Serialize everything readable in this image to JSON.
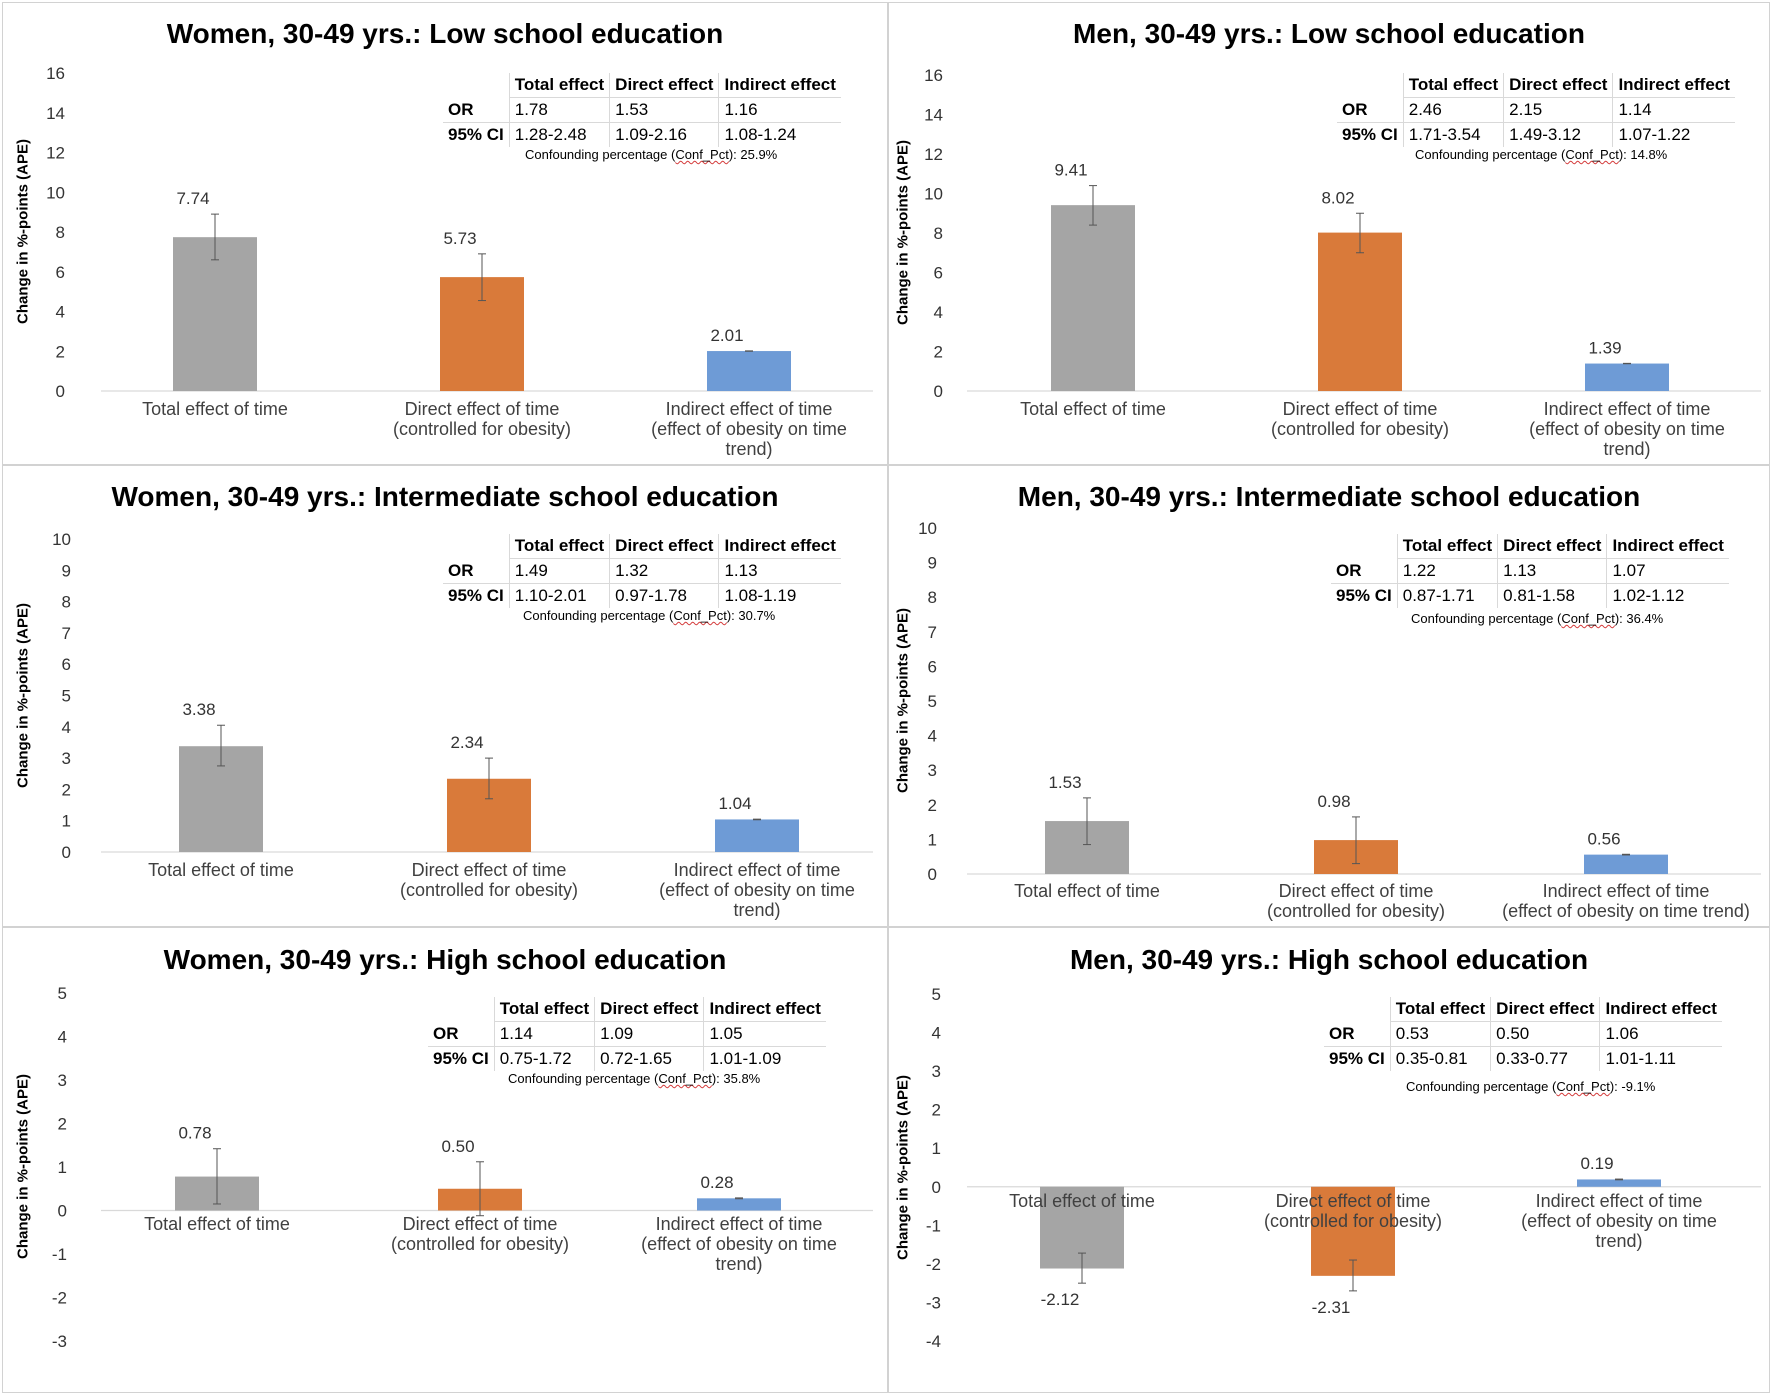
{
  "colors": {
    "total": "#a5a5a5",
    "direct": "#d97a3a",
    "indirect": "#6e9bd6",
    "axis_text": "#333333",
    "axis_line": "#d9d9d9"
  },
  "chart_data": [
    {
      "type": "bar",
      "title": "Women, 30-49 yrs.: Low school education",
      "ylabel": "Change in  %-points (APE)",
      "ylim": [
        0,
        16
      ],
      "ystep": 2,
      "categories": [
        [
          "Total effect of time"
        ],
        [
          "Direct effect of time",
          "(controlled for obesity)"
        ],
        [
          "Indirect effect of time",
          "(effect of obesity on time",
          "trend)"
        ]
      ],
      "values": [
        7.74,
        5.73,
        2.01
      ],
      "labels": [
        "7.74",
        "5.73",
        "2.01"
      ],
      "errors": [
        [
          6.6,
          8.9
        ],
        [
          4.55,
          6.9
        ],
        [
          2.0,
          2.02
        ]
      ],
      "table": {
        "headers": [
          "Total effect",
          "Direct effect",
          "Indirect effect"
        ],
        "rows": [
          {
            "label": "OR",
            "values": [
              "1.78",
              "1.53",
              "1.16"
            ]
          },
          {
            "label": "95% CI",
            "values": [
              "1.28-2.48",
              "1.09-2.16",
              "1.08-1.24"
            ]
          }
        ]
      },
      "confounding": {
        "prefix": "Confounding percentage (",
        "term": "Conf_Pct",
        "suffix": "): 25.9%"
      }
    },
    {
      "type": "bar",
      "title": "Men, 30-49 yrs.: Low school education",
      "ylabel": "Change in  %-points (APE)",
      "ylim": [
        0,
        16
      ],
      "ystep": 2,
      "categories": [
        [
          "Total effect of time"
        ],
        [
          "Direct effect of time",
          "(controlled for obesity)"
        ],
        [
          "Indirect effect of time",
          "(effect of obesity on time",
          "trend)"
        ]
      ],
      "values": [
        9.41,
        8.02,
        1.39
      ],
      "labels": [
        "9.41",
        "8.02",
        "1.39"
      ],
      "errors": [
        [
          8.4,
          10.4
        ],
        [
          7.0,
          9.0
        ],
        [
          1.38,
          1.4
        ]
      ],
      "table": {
        "headers": [
          "Total effect",
          "Direct effect",
          "Indirect effect"
        ],
        "rows": [
          {
            "label": "OR",
            "values": [
              "2.46",
              "2.15",
              "1.14"
            ]
          },
          {
            "label": "95% CI",
            "values": [
              "1.71-3.54",
              "1.49-3.12",
              "1.07-1.22"
            ]
          }
        ]
      },
      "confounding": {
        "prefix": "Confounding percentage (",
        "term": "Conf_Pct",
        "suffix": "): 14.8%"
      }
    },
    {
      "type": "bar",
      "title": "Women, 30-49 yrs.: Intermediate school education",
      "ylabel": "Change in  %-points (APE)",
      "ylim": [
        0,
        10
      ],
      "ystep": 1,
      "categories": [
        [
          "Total effect of time"
        ],
        [
          "Direct effect of time",
          "(controlled for obesity)"
        ],
        [
          "Indirect effect of time",
          "(effect of obesity on time",
          "trend)"
        ]
      ],
      "values": [
        3.38,
        2.34,
        1.04
      ],
      "labels": [
        "3.38",
        "2.34",
        "1.04"
      ],
      "errors": [
        [
          2.75,
          4.05
        ],
        [
          1.7,
          3.0
        ],
        [
          1.03,
          1.05
        ]
      ],
      "table": {
        "headers": [
          "Total effect",
          "Direct effect",
          "Indirect effect"
        ],
        "rows": [
          {
            "label": "OR",
            "values": [
              "1.49",
              "1.32",
              "1.13"
            ]
          },
          {
            "label": "95% CI",
            "values": [
              "1.10-2.01",
              "0.97-1.78",
              "1.08-1.19"
            ]
          }
        ]
      },
      "confounding": {
        "prefix": "Confounding percentage (",
        "term": "Conf_Pct",
        "suffix": "): 30.7%"
      }
    },
    {
      "type": "bar",
      "title": "Men, 30-49 yrs.: Intermediate school education",
      "ylabel": "Change in  %-points (APE)",
      "ylim": [
        0,
        10
      ],
      "ystep": 1,
      "categories": [
        [
          "Total effect of time"
        ],
        [
          "Direct effect of time",
          "(controlled for obesity)"
        ],
        [
          "Indirect effect of time",
          "(effect of obesity on time trend)"
        ]
      ],
      "values": [
        1.53,
        0.98,
        0.56
      ],
      "labels": [
        "1.53",
        "0.98",
        "0.56"
      ],
      "errors": [
        [
          0.85,
          2.2
        ],
        [
          0.3,
          1.65
        ],
        [
          0.55,
          0.57
        ]
      ],
      "table": {
        "headers": [
          "Total effect",
          "Direct effect",
          "Indirect effect"
        ],
        "rows": [
          {
            "label": "OR",
            "values": [
              "1.22",
              "1.13",
              "1.07"
            ]
          },
          {
            "label": "95% CI",
            "values": [
              "0.87-1.71",
              "0.81-1.58",
              "1.02-1.12"
            ]
          }
        ]
      },
      "confounding": {
        "prefix": "Confounding percentage (",
        "term": "Conf_Pct",
        "suffix": "): 36.4%"
      }
    },
    {
      "type": "bar",
      "title": "Women, 30-49 yrs.: High school education",
      "ylabel": "Change in  %-points (APE)",
      "ylim": [
        -3,
        5
      ],
      "ystep": 1,
      "categories": [
        [
          "Total effect of time"
        ],
        [
          "Direct effect of time",
          "(controlled for obesity)"
        ],
        [
          "Indirect effect of time",
          "(effect of obesity on time",
          "trend)"
        ]
      ],
      "values": [
        0.78,
        0.5,
        0.28
      ],
      "labels": [
        "0.78",
        "0.50",
        "0.28"
      ],
      "errors": [
        [
          0.15,
          1.42
        ],
        [
          -0.12,
          1.12
        ],
        [
          0.27,
          0.29
        ]
      ],
      "table": {
        "headers": [
          "Total effect",
          "Direct effect",
          "Indirect effect"
        ],
        "rows": [
          {
            "label": "OR",
            "values": [
              "1.14",
              "1.09",
              "1.05"
            ]
          },
          {
            "label": "95% CI",
            "values": [
              "0.75-1.72",
              "0.72-1.65",
              "1.01-1.09"
            ]
          }
        ]
      },
      "confounding": {
        "prefix": "Confounding percentage (",
        "term": "Conf_Pct",
        "suffix": "): 35.8%"
      }
    },
    {
      "type": "bar",
      "title": "Men, 30-49 yrs.: High school education",
      "ylabel": "Change in  %-points (APE)",
      "ylim": [
        -4,
        5
      ],
      "ystep": 1,
      "categories": [
        [
          "Total effect of time"
        ],
        [
          "Direct effect of time",
          "(controlled for obesity)"
        ],
        [
          "Indirect effect of time",
          "(effect of obesity on time",
          "trend)"
        ]
      ],
      "values": [
        -2.12,
        -2.31,
        0.19
      ],
      "labels": [
        "-2.12",
        "-2.31",
        "0.19"
      ],
      "errors": [
        [
          -2.5,
          -1.72
        ],
        [
          -2.7,
          -1.9
        ],
        [
          0.18,
          0.2
        ]
      ],
      "table": {
        "headers": [
          "Total effect",
          "Direct effect",
          "Indirect effect"
        ],
        "rows": [
          {
            "label": "OR",
            "values": [
              "0.53",
              "0.50",
              "1.06"
            ]
          },
          {
            "label": "95% CI",
            "values": [
              "0.35-0.81",
              "0.33-0.77",
              "1.01-1.11"
            ]
          }
        ]
      },
      "confounding": {
        "prefix": "Confounding percentage (",
        "term": "Conf_Pct",
        "suffix": "): -9.1%"
      }
    }
  ]
}
